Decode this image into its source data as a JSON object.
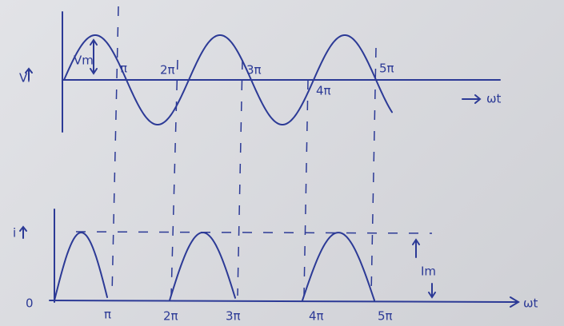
{
  "input": {
    "label": "Vi",
    "amplitude_label": "Vm",
    "x_labels": [
      "π",
      "2π",
      "3π",
      "4π",
      "5π"
    ],
    "axis_label": "ωt"
  },
  "output": {
    "label": "i",
    "origin_label": "0",
    "amplitude_label": "Im",
    "x_labels": [
      "π",
      "2π",
      "3π",
      "4π",
      "5π"
    ],
    "axis_label": "ωt"
  }
}
